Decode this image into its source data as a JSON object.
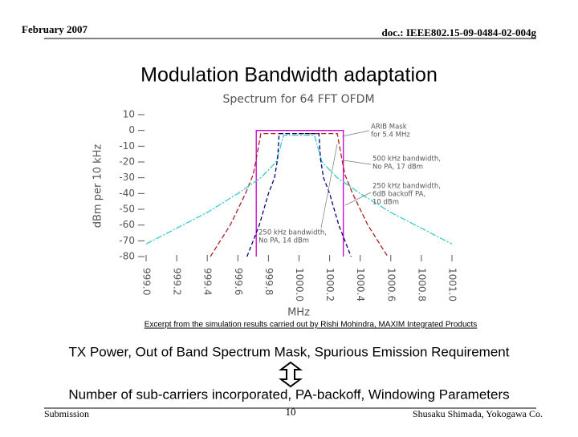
{
  "header": {
    "date": "February 2007",
    "doc": "doc.: IEEE802.15-09-0484-02-004g"
  },
  "title": "Modulation Bandwidth adaptation",
  "chart_data": {
    "type": "line",
    "title": "Spectrum for 64 FFT OFDM",
    "x_label": "MHz",
    "y_label": "dBm per 10 kHz",
    "xlim": [
      999.0,
      1001.0
    ],
    "xticks": [
      {
        "value": 999,
        "label": "999.0"
      },
      999.2,
      999.4,
      999.6,
      999.8,
      {
        "value": 1000,
        "label": "1000.0"
      },
      1000.2,
      1000.4,
      1000.6,
      1000.8,
      {
        "value": 1001,
        "label": "1001.0"
      }
    ],
    "ylim": [
      -80,
      10
    ],
    "yticks": [
      10,
      0,
      -10,
      -20,
      -30,
      -40,
      -50,
      -60,
      -70,
      -80
    ],
    "series": [
      {
        "name": "ARIB Mask for 5.4 MHz",
        "color": "#cc00cc",
        "dash": "none",
        "x": [
          999.72,
          999.72,
          1000.29,
          1000.29
        ],
        "values": [
          -80,
          0,
          0,
          -80
        ]
      },
      {
        "name": "500 kHz bandwidth, No PA, 17 dBm",
        "color": "#aa2222",
        "dash": "6 3",
        "x": [
          999.42,
          999.55,
          999.65,
          999.7,
          999.72,
          999.75,
          1000.25,
          1000.28,
          1000.3,
          1000.35,
          1000.45,
          1000.58
        ],
        "values": [
          -80,
          -60,
          -40,
          -28,
          -18,
          -2,
          -2,
          -18,
          -28,
          -40,
          -60,
          -80
        ]
      },
      {
        "name": "250 kHz bandwidth, 6dB backoff PA, 10 dBm",
        "color": "#33cccc",
        "dash": "8 2 2 2",
        "x": [
          999.0,
          999.2,
          999.4,
          999.6,
          999.75,
          999.85,
          999.9,
          1000.1,
          1000.15,
          1000.25,
          1000.4,
          1000.6,
          1000.8,
          1001.0
        ],
        "values": [
          -72,
          -62,
          -52,
          -40,
          -30,
          -20,
          -3,
          -3,
          -20,
          -30,
          -40,
          -52,
          -62,
          -72
        ]
      },
      {
        "name": "250 kHz bandwidth, No PA, 14 dBm",
        "color": "#000080",
        "dash": "5 3",
        "x": [
          999.66,
          999.74,
          999.8,
          999.84,
          999.86,
          999.87,
          1000.13,
          1000.14,
          1000.16,
          1000.2,
          1000.26,
          1000.34
        ],
        "values": [
          -80,
          -60,
          -40,
          -30,
          -18,
          -2,
          -2,
          -18,
          -30,
          -40,
          -60,
          -80
        ]
      }
    ],
    "annotations": [
      [
        "ARIB Mask",
        "for 5.4 MHz"
      ],
      [
        "500 kHz bandwidth,",
        "No PA, 17 dBm"
      ],
      [
        "250 kHz bandwidth,",
        "6dB backoff PA,",
        "10 dBm"
      ],
      [
        "250 kHz bandwidth,",
        "No PA, 14 dBm"
      ]
    ]
  },
  "caption": "Excerpt from the simulation results carried out by Rishi Mohindra, MAXIM Integrated Products",
  "body": {
    "line1": "TX Power, Out of Band Spectrum Mask, Spurious Emission Requirement",
    "line2": "Number of sub-carriers incorporated, PA-backoff, Windowing Parameters"
  },
  "footer": {
    "left": "Submission",
    "page": "10",
    "right": "Shusaku Shimada, Yokogawa Co."
  }
}
